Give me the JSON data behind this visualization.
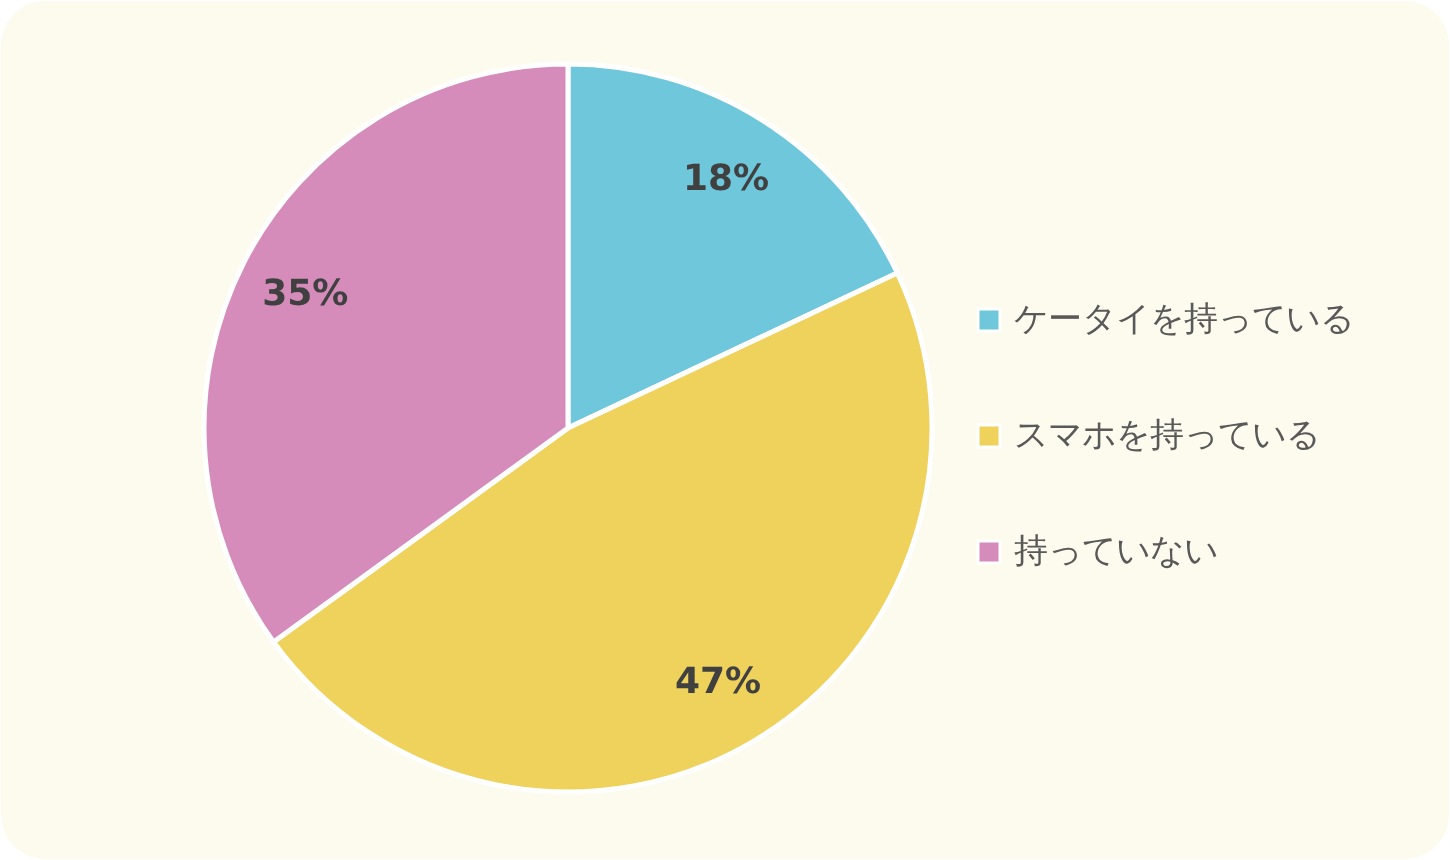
{
  "chart_data": {
    "type": "pie",
    "categories": [
      "ケータイを持っている",
      "スマホを持っている",
      "持っていない"
    ],
    "values": [
      18,
      47,
      35
    ],
    "colors": [
      "#6fc7dc",
      "#eed25c",
      "#d58cba"
    ],
    "value_labels": [
      "18%",
      "47%",
      "35%"
    ],
    "legend": "right"
  }
}
